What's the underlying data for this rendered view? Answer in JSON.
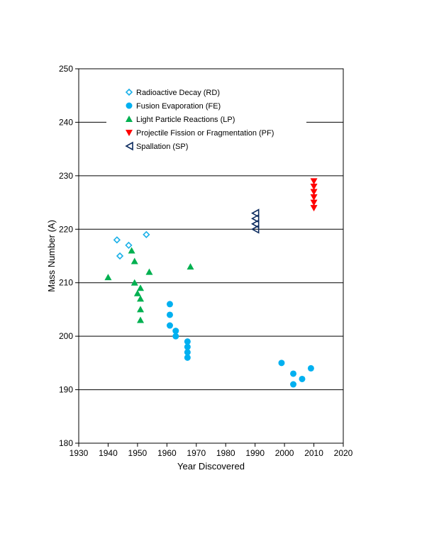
{
  "chart_data": {
    "type": "scatter",
    "title": "",
    "xlabel": "Year Discovered",
    "ylabel": "Mass Number (A)",
    "xlim": [
      1930,
      2020
    ],
    "ylim": [
      180,
      250
    ],
    "xticks": [
      1930,
      1940,
      1950,
      1960,
      1970,
      1980,
      1990,
      2000,
      2010,
      2020
    ],
    "yticks": [
      180,
      190,
      200,
      210,
      220,
      230,
      240,
      250
    ],
    "grid": "horizontal",
    "legend_position": "top-left",
    "series": [
      {
        "name": "Radioactive Decay (RD)",
        "marker": "diamond-open",
        "color": "#1ab0e8",
        "points": [
          [
            1943,
            218
          ],
          [
            1944,
            215
          ],
          [
            1947,
            217
          ],
          [
            1953,
            219
          ]
        ]
      },
      {
        "name": "Fusion Evaporation (FE)",
        "marker": "circle",
        "color": "#00b0f0",
        "points": [
          [
            1961,
            206
          ],
          [
            1961,
            204
          ],
          [
            1961,
            202
          ],
          [
            1963,
            201
          ],
          [
            1963,
            200
          ],
          [
            1967,
            199
          ],
          [
            1967,
            198
          ],
          [
            1967,
            197
          ],
          [
            1967,
            196
          ],
          [
            1999,
            195
          ],
          [
            2003,
            193
          ],
          [
            2003,
            191
          ],
          [
            2006,
            192
          ],
          [
            2009,
            194
          ]
        ]
      },
      {
        "name": "Light Particle Reactions (LP)",
        "marker": "triangle-up",
        "color": "#00b050",
        "points": [
          [
            1940,
            211
          ],
          [
            1948,
            216
          ],
          [
            1949,
            214
          ],
          [
            1949,
            210
          ],
          [
            1950,
            208
          ],
          [
            1951,
            209
          ],
          [
            1951,
            207
          ],
          [
            1951,
            205
          ],
          [
            1951,
            203
          ],
          [
            1954,
            212
          ],
          [
            1968,
            213
          ]
        ]
      },
      {
        "name": "Projectile Fission or Fragmentation (PF)",
        "marker": "triangle-down",
        "color": "#ff0000",
        "points": [
          [
            2010,
            229
          ],
          [
            2010,
            228
          ],
          [
            2010,
            227
          ],
          [
            2010,
            226
          ],
          [
            2010,
            225
          ],
          [
            2010,
            224
          ]
        ]
      },
      {
        "name": "Spallation (SP)",
        "marker": "triangle-left-open",
        "color": "#0b2a5e",
        "points": [
          [
            1990,
            223
          ],
          [
            1990,
            222
          ],
          [
            1990,
            221
          ],
          [
            1990,
            220
          ]
        ]
      }
    ]
  }
}
